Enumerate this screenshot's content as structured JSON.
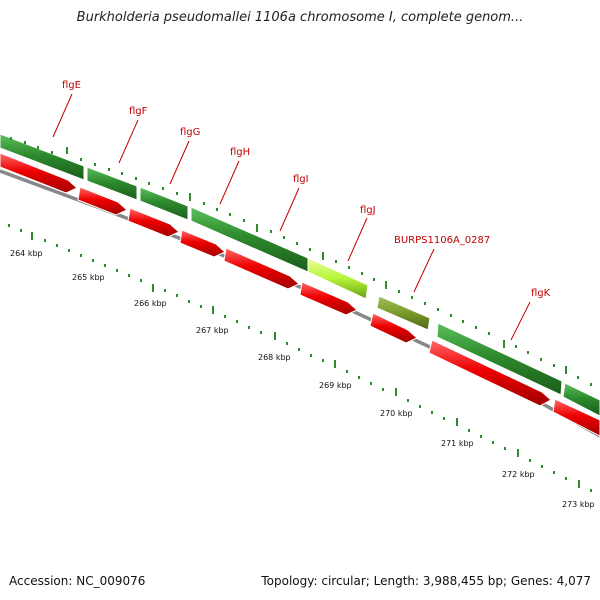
{
  "header": {
    "title": "Burkholderia pseudomallei 1106a chromosome I, complete genom..."
  },
  "footer": {
    "accession": "Accession: NC_009076",
    "summary": "Topology: circular; Length: 3,988,455 bp; Genes: 4,077"
  },
  "genes": [
    {
      "label": "flgE"
    },
    {
      "label": "flgF"
    },
    {
      "label": "flgG"
    },
    {
      "label": "flgH"
    },
    {
      "label": "flgI"
    },
    {
      "label": "flgJ"
    },
    {
      "label": "BURPS1106A_0287"
    },
    {
      "label": "flgK"
    }
  ],
  "scale": {
    "ticks": [
      "264 kbp",
      "265 kbp",
      "266 kbp",
      "267 kbp",
      "268 kbp",
      "269 kbp",
      "270 kbp",
      "271 kbp",
      "272 kbp",
      "273 kbp"
    ]
  },
  "colors": {
    "gene_label": "#c00000",
    "cds_red": "#ee0000",
    "track_green": "#2e8b2e",
    "highlight_lime": "#b5f53a",
    "olive_gene": "#7a9a2a",
    "backbone_grey": "#8a8a8a"
  }
}
